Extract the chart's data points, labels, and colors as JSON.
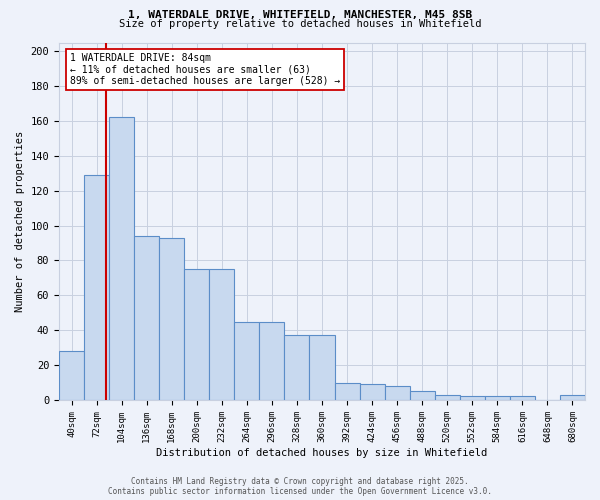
{
  "title_line1": "1, WATERDALE DRIVE, WHITEFIELD, MANCHESTER, M45 8SB",
  "title_line2": "Size of property relative to detached houses in Whitefield",
  "xlabel": "Distribution of detached houses by size in Whitefield",
  "ylabel": "Number of detached properties",
  "bar_color": "#c8d9ef",
  "bar_edge_color": "#5b8dc8",
  "categories": [
    "40sqm",
    "72sqm",
    "104sqm",
    "136sqm",
    "168sqm",
    "200sqm",
    "232sqm",
    "264sqm",
    "296sqm",
    "328sqm",
    "360sqm",
    "392sqm",
    "424sqm",
    "456sqm",
    "488sqm",
    "520sqm",
    "552sqm",
    "584sqm",
    "616sqm",
    "648sqm",
    "680sqm"
  ],
  "values": [
    28,
    129,
    162,
    94,
    93,
    75,
    75,
    45,
    45,
    37,
    37,
    10,
    9,
    8,
    5,
    3,
    2,
    2,
    2,
    0,
    3
  ],
  "ylim": [
    0,
    205
  ],
  "yticks": [
    0,
    20,
    40,
    60,
    80,
    100,
    120,
    140,
    160,
    180,
    200
  ],
  "annotation_line1": "1 WATERDALE DRIVE: 84sqm",
  "annotation_line2": "← 11% of detached houses are smaller (63)",
  "annotation_line3": "89% of semi-detached houses are larger (528) →",
  "annotation_box_color": "#ffffff",
  "annotation_box_edge": "#cc0000",
  "vline_color": "#cc0000",
  "grid_color": "#c8d0e0",
  "footer_line1": "Contains HM Land Registry data © Crown copyright and database right 2025.",
  "footer_line2": "Contains public sector information licensed under the Open Government Licence v3.0.",
  "bg_color": "#eef2fa"
}
